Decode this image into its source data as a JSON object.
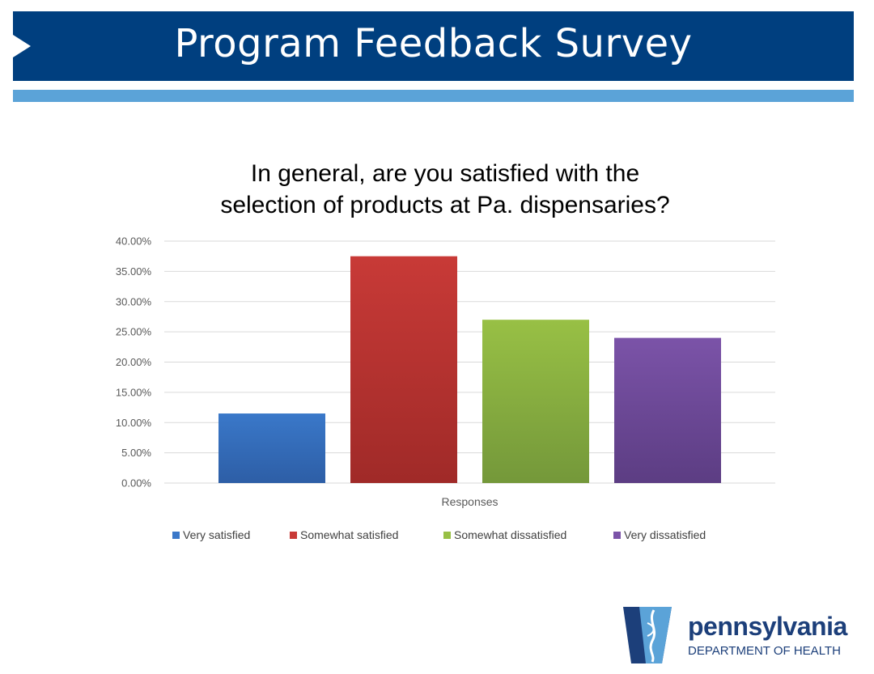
{
  "header": {
    "title": "Program Feedback Survey"
  },
  "colors": {
    "banner": "#003f7f",
    "stripe": "#5ba3d8",
    "series": [
      "#3a78c9",
      "#c83a37",
      "#98c045",
      "#7b53a8"
    ],
    "series_dark": [
      "#2d5ea6",
      "#a02a28",
      "#74983a",
      "#5c3d83"
    ]
  },
  "chart_data": {
    "type": "bar",
    "title_lines": [
      "In general, are you satisfied with the",
      "selection of products at Pa. dispensaries?"
    ],
    "xlabel": "Responses",
    "ylabel": "",
    "categories": [
      "Responses"
    ],
    "series": [
      {
        "name": "Very satisfied",
        "values": [
          0.115
        ]
      },
      {
        "name": "Somewhat satisfied",
        "values": [
          0.375
        ]
      },
      {
        "name": "Somewhat dissatisfied",
        "values": [
          0.27
        ]
      },
      {
        "name": "Very dissatisfied",
        "values": [
          0.24
        ]
      }
    ],
    "ylim": [
      0,
      0.4
    ],
    "yticks": [
      "0.00%",
      "5.00%",
      "10.00%",
      "15.00%",
      "20.00%",
      "25.00%",
      "30.00%",
      "35.00%",
      "40.00%"
    ],
    "grid": true,
    "legend": "bottom"
  },
  "logo": {
    "name": "pennsylvania",
    "subtitle": "DEPARTMENT OF HEALTH"
  }
}
